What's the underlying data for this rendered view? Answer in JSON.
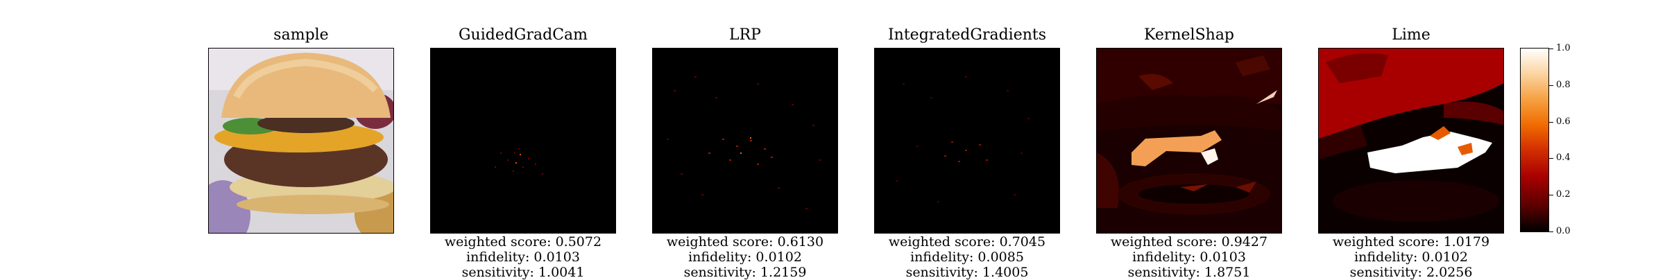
{
  "panels": [
    {
      "title": "sample",
      "weighted": "",
      "infidelity": "",
      "sensitivity": ""
    },
    {
      "title": "GuidedGradCam",
      "weighted": "weighted score: 0.5072",
      "infidelity": "infidelity: 0.0103",
      "sensitivity": "sensitivity: 1.0041"
    },
    {
      "title": "LRP",
      "weighted": "weighted score: 0.6130",
      "infidelity": "infidelity: 0.0102",
      "sensitivity": "sensitivity: 1.2159"
    },
    {
      "title": "IntegratedGradients",
      "weighted": "weighted score: 0.7045",
      "infidelity": "infidelity: 0.0085",
      "sensitivity": "sensitivity: 1.4005"
    },
    {
      "title": "KernelShap",
      "weighted": "weighted score: 0.9427",
      "infidelity": "infidelity: 0.0103",
      "sensitivity": "sensitivity: 1.8751"
    },
    {
      "title": "Lime",
      "weighted": "weighted score: 1.0179",
      "infidelity": "infidelity: 0.0102",
      "sensitivity": "sensitivity: 2.0256"
    }
  ],
  "colorbar": {
    "min": 0.0,
    "max": 1.0,
    "ticks": [
      "0.0",
      "0.2",
      "0.4",
      "0.6",
      "0.8",
      "1.0"
    ],
    "colors": [
      "#000000",
      "#a80000",
      "#f06a00",
      "#ffffff"
    ]
  }
}
